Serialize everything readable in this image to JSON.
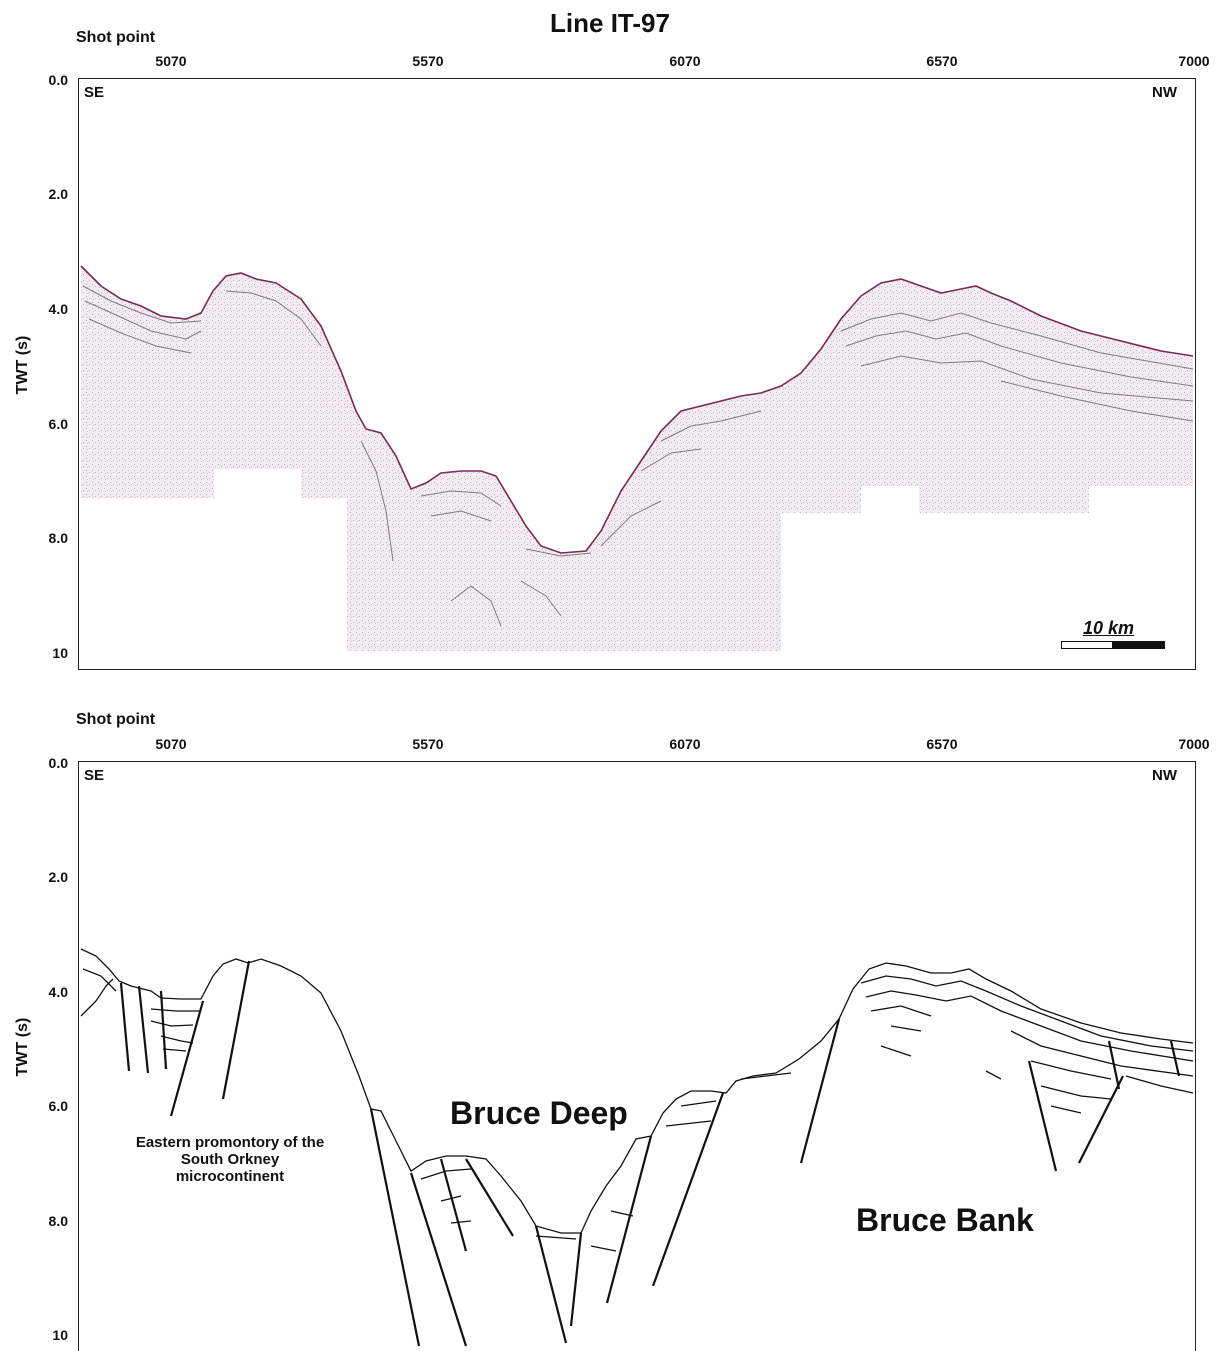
{
  "title": "Line IT-97",
  "top_panel": {
    "shot_point_label": "Shot point",
    "x_ticks": [
      "5070",
      "5570",
      "6070",
      "6570",
      "7000"
    ],
    "y_ticks": [
      "0.0",
      "2.0",
      "4.0",
      "6.0",
      "8.0",
      "10"
    ],
    "y_label": "TWT (s)",
    "left_corner": "SE",
    "right_corner": "NW",
    "scale_bar_label": "10 km"
  },
  "bottom_panel": {
    "shot_point_label": "Shot point",
    "x_ticks": [
      "5070",
      "5570",
      "6070",
      "6570",
      "7000"
    ],
    "y_ticks": [
      "0.0",
      "2.0",
      "4.0",
      "6.0",
      "8.0",
      "10"
    ],
    "y_label": "TWT (s)",
    "left_corner": "SE",
    "right_corner": "NW",
    "label_bruce_deep": "Bruce Deep",
    "label_bruce_bank": "Bruce Bank",
    "note_line1": "Eastern promontory of the",
    "note_line2": "South Orkney",
    "note_line3": "microcontinent"
  },
  "colors": {
    "seismic_fill": "#efe6ee",
    "reflector": "#7a2a55",
    "line": "#111111"
  }
}
